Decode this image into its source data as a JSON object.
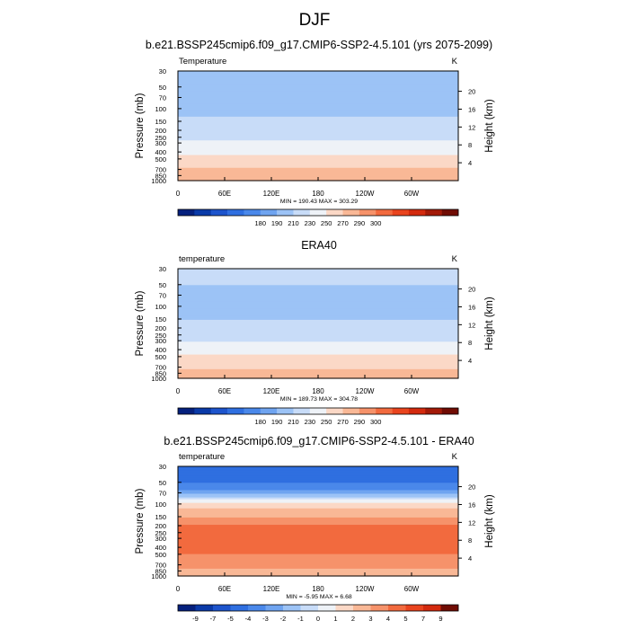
{
  "figure": {
    "title": "DJF",
    "x_ticks": [
      "0",
      "60E",
      "120E",
      "180",
      "120W",
      "60W"
    ],
    "y_ticks": [
      "30",
      "50",
      "70",
      "100",
      "150",
      "200",
      "250",
      "300",
      "400",
      "500",
      "700",
      "850",
      "1000"
    ],
    "y2_ticks": [
      "20",
      "16",
      "12",
      "8",
      "4"
    ],
    "ylabel": "Pressure (mb)",
    "y2label": "Height (km)"
  },
  "chart_data": [
    {
      "type": "heatmap",
      "title": "b.e21.BSSP245cmip6.f09_g17.CMIP6-SSP2-4.5.101 (yrs 2075-2099)",
      "left_label": "Temperature",
      "units": "K",
      "stats": "MIN = 190.43  MAX = 303.29",
      "min": 190.43,
      "max": 303.29,
      "colorbar_ticks": [
        "180",
        "190",
        "210",
        "230",
        "250",
        "270",
        "290",
        "300"
      ],
      "colorbar_colors": [
        "#05207d",
        "#0a3aa8",
        "#1d54cc",
        "#2f6fe0",
        "#4a88ea",
        "#6fa4f0",
        "#9cc3f6",
        "#c8dcf8",
        "#eef2f7",
        "#fbd8c6",
        "#f9b896",
        "#f6926a",
        "#f26a3e",
        "#e9441e",
        "#d32a0e",
        "#a31a08",
        "#700c04"
      ],
      "profile": [
        {
          "p": 30,
          "t": 207
        },
        {
          "p": 50,
          "t": 206
        },
        {
          "p": 70,
          "t": 205
        },
        {
          "p": 100,
          "t": 207
        },
        {
          "p": 150,
          "t": 212
        },
        {
          "p": 200,
          "t": 218
        },
        {
          "p": 250,
          "t": 225
        },
        {
          "p": 300,
          "t": 233
        },
        {
          "p": 400,
          "t": 246
        },
        {
          "p": 500,
          "t": 256
        },
        {
          "p": 700,
          "t": 272
        },
        {
          "p": 850,
          "t": 280
        },
        {
          "p": 1000,
          "t": 288
        }
      ]
    },
    {
      "type": "heatmap",
      "title": "ERA40",
      "left_label": "temperature",
      "units": "K",
      "stats": "MIN = 189.73  MAX = 304.78",
      "min": 189.73,
      "max": 304.78,
      "colorbar_ticks": [
        "180",
        "190",
        "210",
        "230",
        "250",
        "270",
        "290",
        "300"
      ],
      "colorbar_colors": [
        "#05207d",
        "#0a3aa8",
        "#1d54cc",
        "#2f6fe0",
        "#4a88ea",
        "#6fa4f0",
        "#9cc3f6",
        "#c8dcf8",
        "#eef2f7",
        "#fbd8c6",
        "#f9b896",
        "#f6926a",
        "#f26a3e",
        "#e9441e",
        "#d32a0e",
        "#a31a08",
        "#700c04"
      ],
      "profile": [
        {
          "p": 30,
          "t": 211
        },
        {
          "p": 50,
          "t": 210
        },
        {
          "p": 70,
          "t": 208
        },
        {
          "p": 100,
          "t": 207
        },
        {
          "p": 150,
          "t": 210
        },
        {
          "p": 200,
          "t": 215
        },
        {
          "p": 250,
          "t": 221
        },
        {
          "p": 300,
          "t": 228
        },
        {
          "p": 400,
          "t": 241
        },
        {
          "p": 500,
          "t": 252
        },
        {
          "p": 700,
          "t": 268
        },
        {
          "p": 850,
          "t": 276
        },
        {
          "p": 1000,
          "t": 284
        }
      ]
    },
    {
      "type": "heatmap",
      "title": "b.e21.BSSP245cmip6.f09_g17.CMIP6-SSP2-4.5.101 - ERA40",
      "left_label": "temperature",
      "units": "K",
      "stats": "MIN = -5.95  MAX =  6.68",
      "min": -5.95,
      "max": 6.68,
      "colorbar_ticks": [
        "-9",
        "-7",
        "-5",
        "-4",
        "-3",
        "-2",
        "-1",
        "0",
        "1",
        "2",
        "3",
        "4",
        "5",
        "7",
        "9"
      ],
      "colorbar_colors": [
        "#05207d",
        "#0a3aa8",
        "#1d54cc",
        "#2f6fe0",
        "#4a88ea",
        "#6fa4f0",
        "#9cc3f6",
        "#c8dcf8",
        "#eef2f7",
        "#fbd8c6",
        "#f9b896",
        "#f6926a",
        "#f26a3e",
        "#e9441e",
        "#d32a0e",
        "#700c04"
      ],
      "profile": [
        {
          "p": 30,
          "t": -4.5
        },
        {
          "p": 50,
          "t": -4.0
        },
        {
          "p": 70,
          "t": -2.5
        },
        {
          "p": 100,
          "t": 1.5
        },
        {
          "p": 150,
          "t": 3.0
        },
        {
          "p": 200,
          "t": 4.0
        },
        {
          "p": 250,
          "t": 4.5
        },
        {
          "p": 300,
          "t": 4.6
        },
        {
          "p": 400,
          "t": 4.3
        },
        {
          "p": 500,
          "t": 4.0
        },
        {
          "p": 700,
          "t": 3.2
        },
        {
          "p": 850,
          "t": 2.8
        },
        {
          "p": 1000,
          "t": 2.3
        }
      ]
    }
  ]
}
